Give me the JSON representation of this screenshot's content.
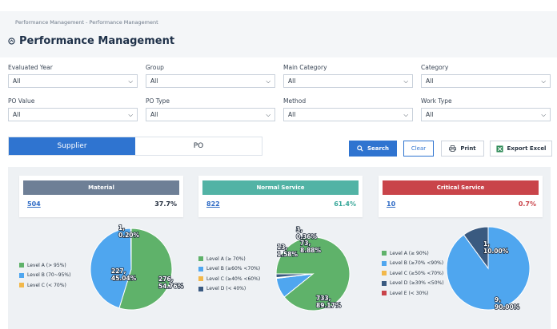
{
  "breadcrumb": "Performance Management - Performance Management",
  "page_title": "Performance Management",
  "filters": [
    {
      "label": "Evaluated Year",
      "value": "All"
    },
    {
      "label": "Group",
      "value": "All"
    },
    {
      "label": "Main Category",
      "value": "All"
    },
    {
      "label": "Category",
      "value": "All"
    },
    {
      "label": "PO Value",
      "value": "All"
    },
    {
      "label": "PO Type",
      "value": "All"
    },
    {
      "label": "Method",
      "value": "All"
    },
    {
      "label": "Work Type",
      "value": "All"
    }
  ],
  "tabs": {
    "supplier": "Supplier",
    "po": "PO",
    "active": "supplier"
  },
  "buttons": {
    "search": "Search",
    "clear": "Clear",
    "print": "Print",
    "export": "Export Excel"
  },
  "cards": [
    {
      "title": "Material",
      "count": "504",
      "percent": "37.7%",
      "color": "#6e7f96",
      "pct_color": "#1f2a3a"
    },
    {
      "title": "Normal Service",
      "count": "822",
      "percent": "61.4%",
      "color": "#52b3a5",
      "pct_color": "#3aa89a"
    },
    {
      "title": "Critical Service",
      "count": "10",
      "percent": "0.7%",
      "color": "#c9444a",
      "pct_color": "#c9444a"
    }
  ],
  "chart_data": [
    {
      "type": "pie",
      "legend": [
        "Level A (> 95%)",
        "Level B (70~95%)",
        "Level C (< 70%)"
      ],
      "colors": [
        "#5fb26a",
        "#4fa6ef",
        "#f2b84b"
      ],
      "values": [
        276,
        227,
        1
      ],
      "labels": [
        [
          "276,",
          "54.76%"
        ],
        [
          "227,",
          "45.04%"
        ],
        [
          "1,",
          "0.20%"
        ]
      ]
    },
    {
      "type": "pie",
      "legend": [
        "Level A (≥ 70%)",
        "Level B (≥60% <70%)",
        "Level C (≥40% <60%)",
        "Level D (< 40%)"
      ],
      "colors": [
        "#5fb26a",
        "#4fa6ef",
        "#f2b84b",
        "#3a5a80"
      ],
      "values": [
        733,
        73,
        3,
        13
      ],
      "labels": [
        [
          "733,",
          "89.17%"
        ],
        [
          "73,",
          "8.88%"
        ],
        [
          "3,",
          "0.36%"
        ],
        [
          "13,",
          "1.58%"
        ]
      ]
    },
    {
      "type": "pie",
      "legend": [
        "Level A (≥ 90%)",
        "Level B (≥70% <90%)",
        "Level C (≥50% <70%)",
        "Level D (≥30% <50%)",
        "Level E (< 30%)"
      ],
      "colors": [
        "#5fb26a",
        "#4fa6ef",
        "#f2b84b",
        "#3a5a80",
        "#c9444a"
      ],
      "values": [
        0,
        9,
        0,
        1,
        0
      ],
      "labels": [
        [
          "",
          ""
        ],
        [
          "9,",
          "90.00%"
        ],
        [
          "",
          ""
        ],
        [
          "1,",
          "10.00%"
        ],
        [
          "",
          ""
        ]
      ]
    }
  ]
}
